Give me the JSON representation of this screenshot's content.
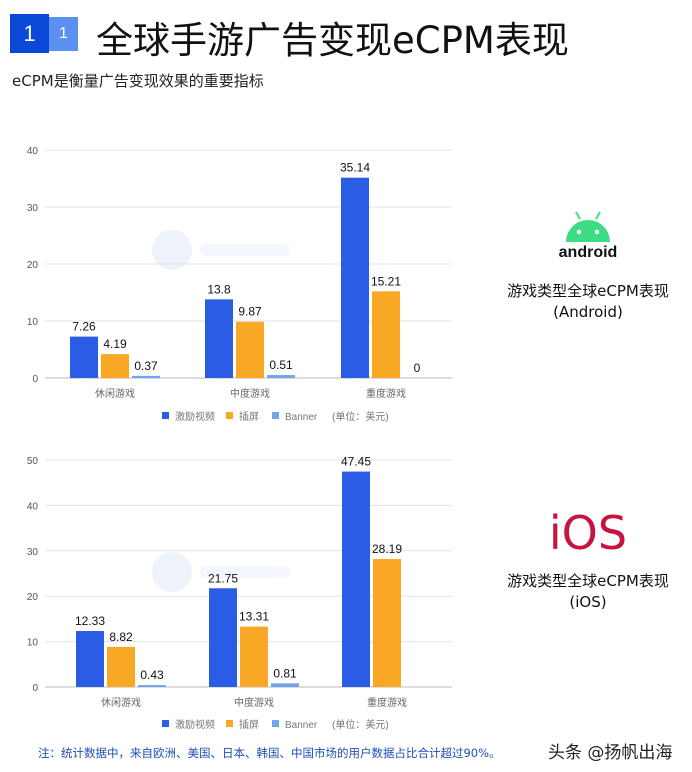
{
  "header": {
    "badge_main": "1",
    "badge_sub": "1",
    "title": "全球手游广告变现eCPM表现",
    "subtitle": "eCPM是衡量广告变现效果的重要指标"
  },
  "watermark": "topOn",
  "colors": {
    "rewarded": "#2a5ce6",
    "interstitial": "#f9a825",
    "banner": "#6fa5ef",
    "grid": "#e3e3e3"
  },
  "chart_data": [
    {
      "type": "bar",
      "platform": "Android",
      "categories": [
        "休闲游戏",
        "中度游戏",
        "重度游戏"
      ],
      "series": [
        {
          "name": "激励视频",
          "values": [
            7.26,
            13.8,
            35.14
          ]
        },
        {
          "name": "插屏",
          "values": [
            4.19,
            9.87,
            15.21
          ]
        },
        {
          "name": "Banner",
          "values": [
            0.37,
            0.51,
            0
          ]
        }
      ],
      "ylim": [
        0,
        40
      ],
      "yticks": [
        0,
        10,
        20,
        30,
        40
      ],
      "unit": "(单位：美元)",
      "legend": "bottom",
      "grid": true,
      "labels": [
        [
          "7.26",
          "13.8",
          "35.14"
        ],
        [
          "4.19",
          "9.87",
          "15.21"
        ],
        [
          "0.37",
          "0.51",
          "0"
        ]
      ]
    },
    {
      "type": "bar",
      "platform": "iOS",
      "categories": [
        "休闲游戏",
        "中度游戏",
        "重度游戏"
      ],
      "series": [
        {
          "name": "激励视频",
          "values": [
            12.33,
            21.75,
            47.45
          ]
        },
        {
          "name": "插屏",
          "values": [
            8.82,
            13.31,
            28.19
          ]
        },
        {
          "name": "Banner",
          "values": [
            0.43,
            0.81,
            null
          ]
        }
      ],
      "ylim": [
        0,
        50
      ],
      "yticks": [
        0,
        10,
        20,
        30,
        40,
        50
      ],
      "unit": "(单位：美元)",
      "legend": "bottom",
      "grid": true,
      "labels": [
        [
          "12.33",
          "21.75",
          "47.45"
        ],
        [
          "8.82",
          "13.31",
          "28.19"
        ],
        [
          "0.43",
          "0.81",
          ""
        ]
      ]
    }
  ],
  "side": {
    "android_logo": "android",
    "android_caption1": "游戏类型全球eCPM表现",
    "android_caption2": "(Android)",
    "ios_logo": "iOS",
    "ios_caption1": "游戏类型全球eCPM表现",
    "ios_caption2": "(iOS)"
  },
  "footer": {
    "note": "注：统计数据中，来自欧洲、美国、日本、韩国、中国市场的用户数据占比合计超过90%。",
    "credit": "头条 @扬帆出海"
  }
}
